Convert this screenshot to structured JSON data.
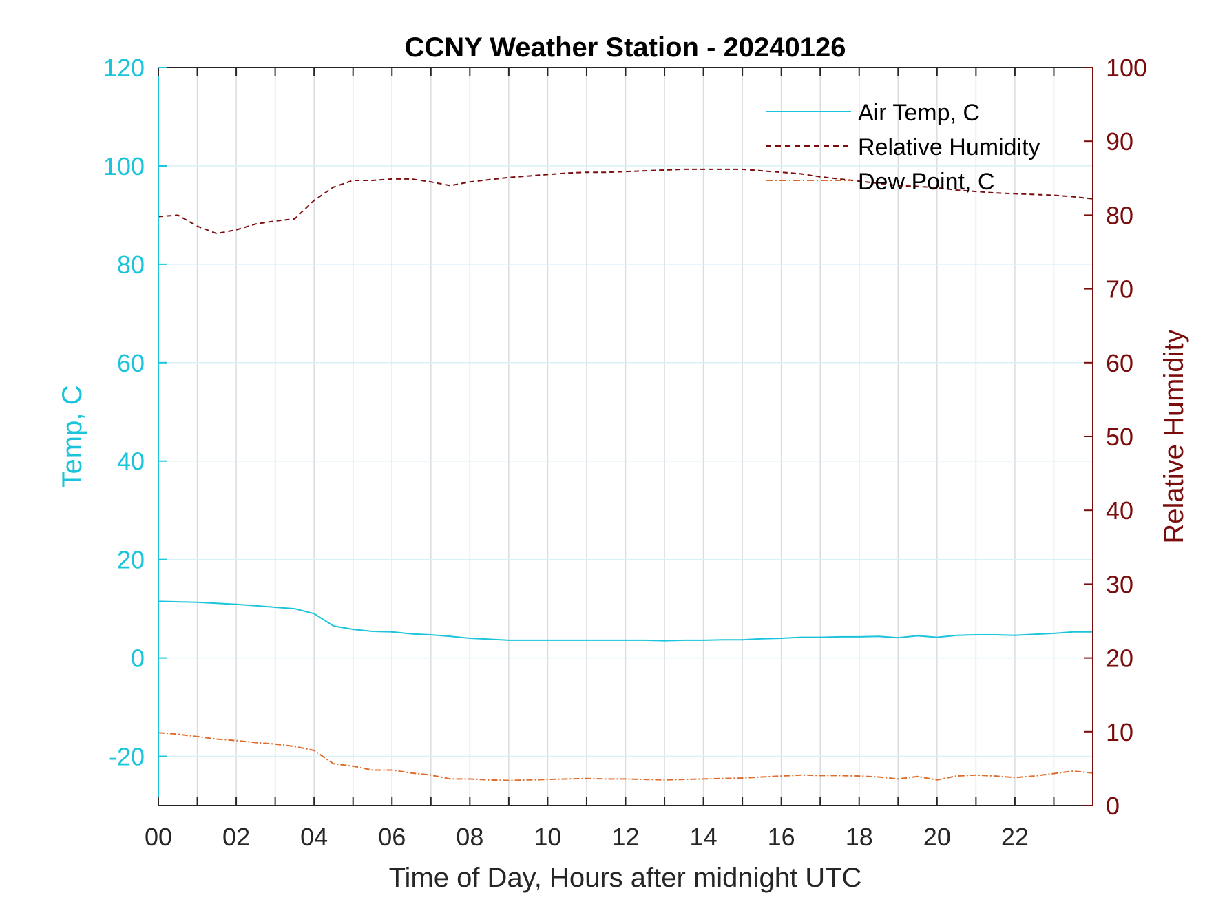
{
  "chart_data": {
    "type": "line",
    "title": "CCNY Weather Station - 20240126",
    "xlabel": "Time of Day, Hours after midnight UTC",
    "ylabel_left": "Temp, C",
    "ylabel_right": "Relative Humidity",
    "xlim": [
      0,
      24
    ],
    "ylim_left": [
      -30,
      120
    ],
    "ylim_right": [
      0,
      100
    ],
    "x_ticks": [
      0,
      2,
      4,
      6,
      8,
      10,
      12,
      14,
      16,
      18,
      20,
      22
    ],
    "x_tick_labels": [
      "00",
      "02",
      "04",
      "06",
      "08",
      "10",
      "12",
      "14",
      "16",
      "18",
      "20",
      "22"
    ],
    "y_left_ticks": [
      -20,
      0,
      20,
      40,
      60,
      80,
      100,
      120
    ],
    "y_left_tick_labels": [
      "-20",
      "0",
      "20",
      "40",
      "60",
      "80",
      "100",
      "120"
    ],
    "y_right_ticks": [
      0,
      10,
      20,
      30,
      40,
      50,
      60,
      70,
      80,
      90,
      100
    ],
    "y_right_tick_labels": [
      "0",
      "10",
      "20",
      "30",
      "40",
      "50",
      "60",
      "70",
      "80",
      "90",
      "100"
    ],
    "grid": true,
    "legend_position": "top-right",
    "colors": {
      "air_temp": "#1BC4DA",
      "relative_humidity": "#7A0C0C",
      "dew_point": "#E06C2B",
      "left_axis": "#1BC4DA",
      "right_axis": "#7A0C0C"
    },
    "x": [
      0,
      0.5,
      1,
      1.5,
      2,
      2.5,
      3,
      3.5,
      4,
      4.5,
      5,
      5.5,
      6,
      6.5,
      7,
      7.5,
      8,
      8.5,
      9,
      9.5,
      10,
      10.5,
      11,
      11.5,
      12,
      12.5,
      13,
      13.5,
      14,
      14.5,
      15,
      15.5,
      16,
      16.5,
      17,
      17.5,
      18,
      18.5,
      19,
      19.5,
      20,
      20.5,
      21,
      21.5,
      22,
      22.5,
      23,
      23.5,
      24
    ],
    "series": [
      {
        "name": "Air Temp, C",
        "axis": "left",
        "style": "solid",
        "values": [
          11.5,
          11.4,
          11.3,
          11.1,
          10.9,
          10.6,
          10.3,
          10.0,
          9.0,
          6.5,
          5.8,
          5.4,
          5.3,
          4.9,
          4.7,
          4.4,
          4.0,
          3.8,
          3.6,
          3.6,
          3.6,
          3.6,
          3.6,
          3.6,
          3.6,
          3.6,
          3.5,
          3.6,
          3.6,
          3.7,
          3.7,
          3.9,
          4.0,
          4.2,
          4.2,
          4.3,
          4.3,
          4.4,
          4.1,
          4.5,
          4.2,
          4.6,
          4.7,
          4.7,
          4.6,
          4.8,
          5.0,
          5.3,
          5.3
        ]
      },
      {
        "name": "Relative Humidity",
        "axis": "right",
        "style": "dashed",
        "values": [
          79.8,
          80.0,
          78.5,
          77.5,
          78.0,
          78.8,
          79.2,
          79.5,
          82.0,
          83.8,
          84.7,
          84.7,
          84.9,
          84.9,
          84.5,
          84.0,
          84.5,
          84.8,
          85.1,
          85.3,
          85.5,
          85.7,
          85.8,
          85.8,
          85.9,
          86.0,
          86.1,
          86.2,
          86.2,
          86.2,
          86.2,
          86.0,
          85.8,
          85.6,
          85.2,
          84.9,
          84.6,
          84.3,
          84.0,
          83.9,
          83.7,
          83.4,
          83.2,
          83.0,
          82.9,
          82.8,
          82.7,
          82.5,
          82.2
        ]
      },
      {
        "name": "Dew Point, C",
        "axis": "left",
        "style": "dash-dot",
        "values": [
          -15.2,
          -15.5,
          -16.0,
          -16.5,
          -16.8,
          -17.2,
          -17.5,
          -18.0,
          -18.8,
          -21.5,
          -22.0,
          -22.8,
          -22.8,
          -23.4,
          -23.8,
          -24.6,
          -24.6,
          -24.8,
          -24.9,
          -24.8,
          -24.7,
          -24.6,
          -24.5,
          -24.6,
          -24.6,
          -24.7,
          -24.8,
          -24.7,
          -24.6,
          -24.5,
          -24.4,
          -24.2,
          -24.0,
          -23.8,
          -23.9,
          -23.9,
          -24.0,
          -24.2,
          -24.6,
          -24.1,
          -24.8,
          -24.0,
          -23.8,
          -24.0,
          -24.3,
          -24.0,
          -23.5,
          -23.0,
          -23.4
        ]
      }
    ]
  }
}
